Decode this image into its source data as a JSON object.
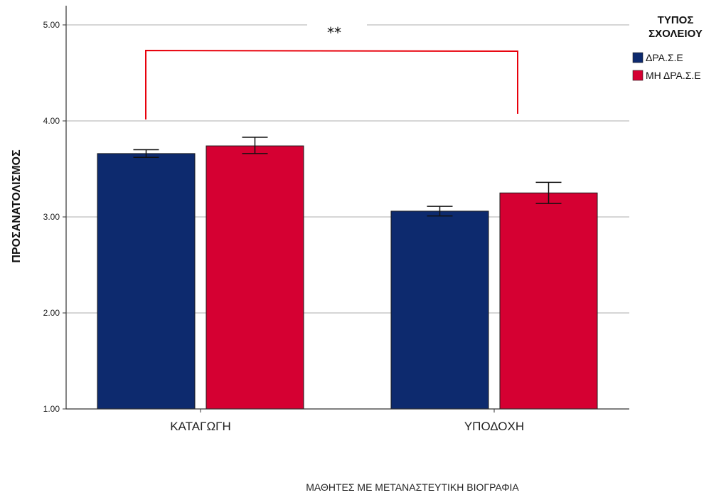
{
  "chart_data": {
    "type": "bar",
    "categories": [
      "ΚΑΤΑΓΩΓΗ",
      "ΥΠΟΔΟΧΗ"
    ],
    "series": [
      {
        "name": "ΔΡΑ.Σ.Ε",
        "color": "#0d2a6e",
        "values": [
          3.66,
          3.06
        ],
        "error_low": [
          3.62,
          3.01
        ],
        "error_high": [
          3.7,
          3.11
        ]
      },
      {
        "name": "ΜΗ ΔΡΑ.Σ.Ε",
        "color": "#d50032",
        "values": [
          3.74,
          3.25
        ],
        "error_low": [
          3.66,
          3.14
        ],
        "error_high": [
          3.83,
          3.36
        ]
      }
    ],
    "xlabel": "ΜΑΘΗΤΕΣ ΜΕ ΜΕΤΑΝΑΣΤΕΥΤΙΚΗ ΒΙΟΓΡΑΦΙΑ",
    "ylabel": "ΠΡΟΣΑΝΑΤΟΛΙΣΜΟΣ",
    "ylim": [
      1.0,
      5.2
    ],
    "yticks": [
      "1.00",
      "2.00",
      "3.00",
      "4.00",
      "5.00"
    ],
    "grid": "horizontal",
    "legend": {
      "title_lines": [
        "ΤΥΠΟΣ",
        "ΣΧΟΛΕΙΟΥ"
      ],
      "placement": "top-right"
    },
    "annotation": {
      "text": "**",
      "color": "#e8000b",
      "from_category": 0,
      "to_category": 1
    }
  }
}
